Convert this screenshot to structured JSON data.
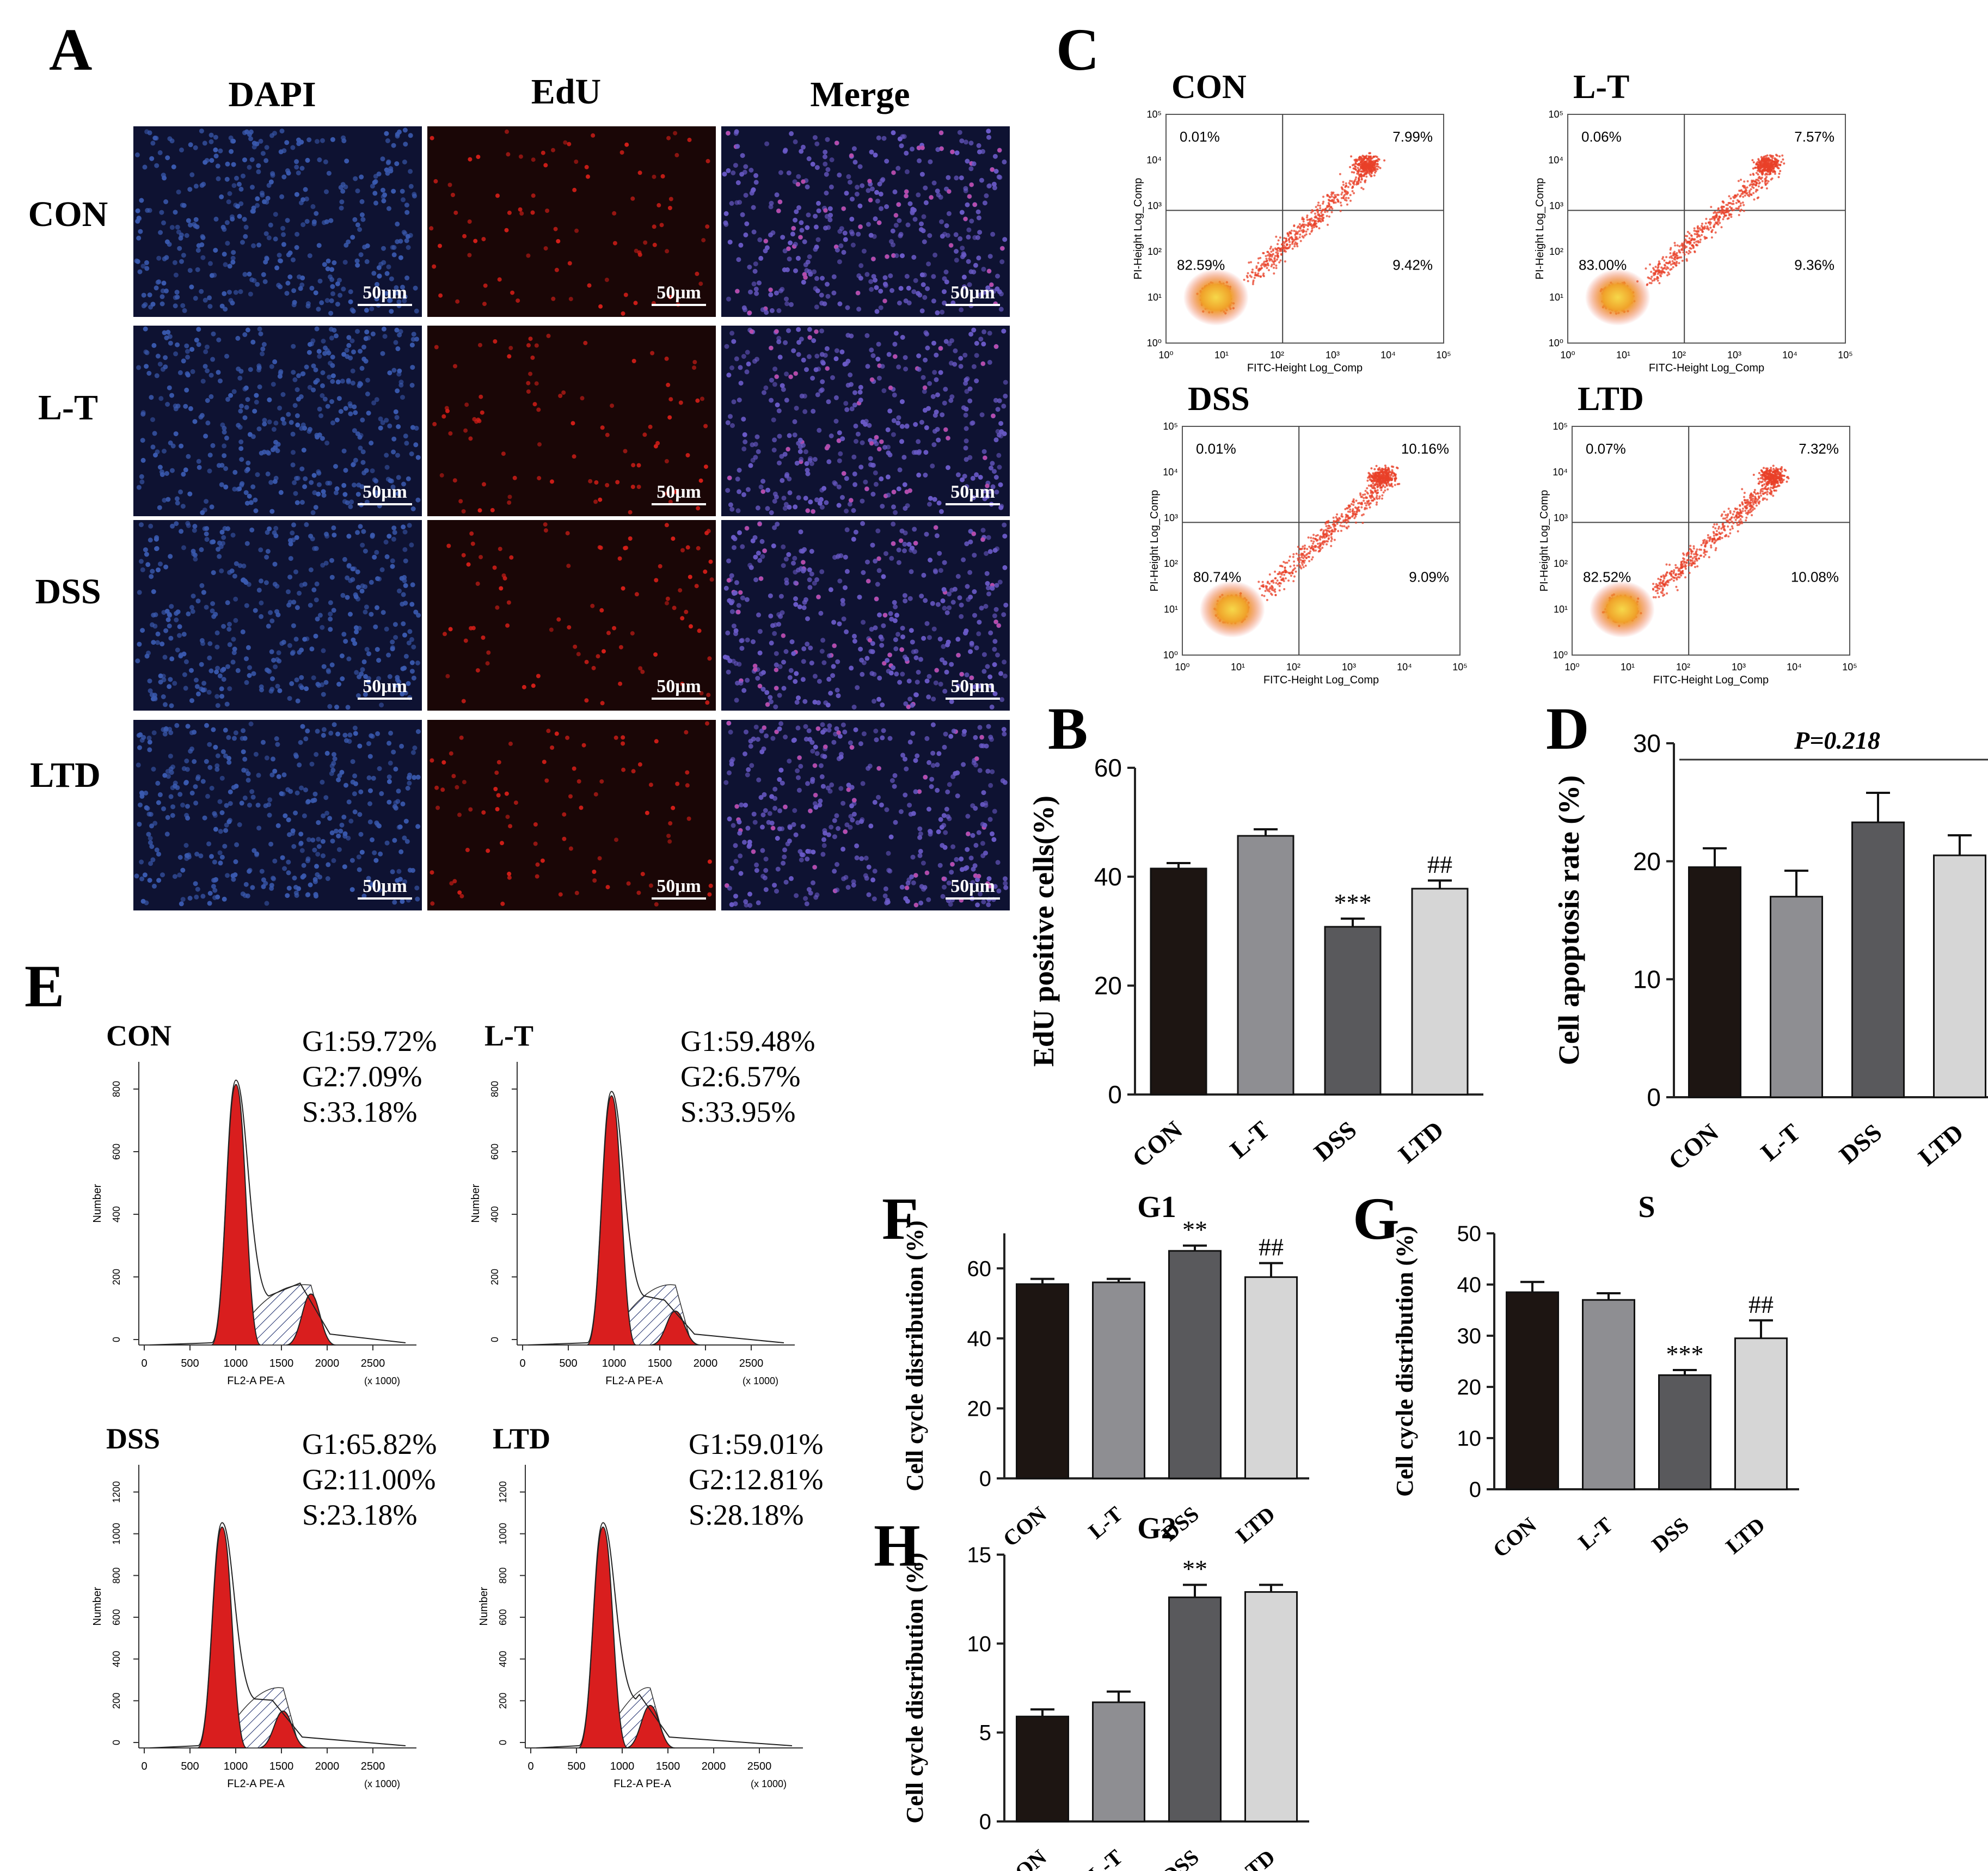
{
  "colors": {
    "micro_bg": "#0e1232",
    "dapi": "#3a5ab0",
    "edu": "#d31e18",
    "merge": "#6a5ac8",
    "bar_con": "#1d1512",
    "bar_lt": "#8e8e92",
    "bar_dss": "#59595c",
    "bar_ltd": "#d6d6d6",
    "hist_red": "#d91e1e",
    "scatter_red": "#e84028",
    "scatter_core": "#f3c229"
  },
  "panelA": {
    "letter": "A",
    "columns": [
      "DAPI",
      "EdU",
      "Merge"
    ],
    "rows": [
      "CON",
      "L-T",
      "DSS",
      "LTD"
    ],
    "scale_label": "50μm"
  },
  "panelC": {
    "letter": "C",
    "plots": [
      {
        "title": "CON",
        "ul": "0.01%",
        "ur": "7.99%",
        "ll": "82.59%",
        "lr": "9.42%"
      },
      {
        "title": "L-T",
        "ul": "0.06%",
        "ur": "7.57%",
        "ll": "83.00%",
        "lr": "9.36%"
      },
      {
        "title": "DSS",
        "ul": "0.01%",
        "ur": "10.16%",
        "ll": "80.74%",
        "lr": "9.09%"
      },
      {
        "title": "LTD",
        "ul": "0.07%",
        "ur": "7.32%",
        "ll": "82.52%",
        "lr": "10.08%"
      }
    ],
    "xlabel": "FITC-Height Log_Comp",
    "ylabel": "PI-Height Log_Comp",
    "ticks": [
      "10⁰",
      "10¹",
      "10²",
      "10³",
      "10⁴",
      "10⁵"
    ]
  },
  "panelE": {
    "letter": "E",
    "xlabel": "FL2-A PE-A",
    "xunit": "(x 1000)",
    "ylabel": "Number",
    "xticks": [
      "0",
      "500",
      "1000",
      "1500",
      "2000",
      "2500"
    ],
    "plots": [
      {
        "title": "CON",
        "g1": "G1:59.72%",
        "g2": "G2:7.09%",
        "s": "S:33.18%",
        "yticks": [
          "0",
          "200",
          "400",
          "600",
          "800"
        ]
      },
      {
        "title": "L-T",
        "g1": "G1:59.48%",
        "g2": "G2:6.57%",
        "s": "S:33.95%",
        "yticks": [
          "0",
          "200",
          "400",
          "600",
          "800"
        ]
      },
      {
        "title": "DSS",
        "g1": "G1:65.82%",
        "g2": "G2:11.00%",
        "s": "S:23.18%",
        "yticks": [
          "0",
          "200",
          "400",
          "600",
          "800",
          "1000",
          "1200"
        ]
      },
      {
        "title": "LTD",
        "g1": "G1:59.01%",
        "g2": "G2:12.81%",
        "s": "S:28.18%",
        "yticks": [
          "0",
          "200",
          "400",
          "600",
          "800",
          "1000",
          "1200"
        ]
      }
    ]
  },
  "chart_data": [
    {
      "id": "B",
      "type": "bar",
      "letter": "B",
      "title": "",
      "ylabel": "EdU positive cells(%)",
      "categories": [
        "CON",
        "L-T",
        "DSS",
        "LTD"
      ],
      "values": [
        41.5,
        47.5,
        30.8,
        37.8
      ],
      "errors": [
        1.0,
        1.2,
        1.5,
        1.5
      ],
      "ylim": [
        0,
        60
      ],
      "yticks": [
        0,
        20,
        40,
        60
      ],
      "annotations": [
        "",
        "",
        "***",
        "##"
      ]
    },
    {
      "id": "D",
      "type": "bar",
      "letter": "D",
      "title": "",
      "ylabel": "Cell apoptosis rate (%)",
      "categories": [
        "CON",
        "L-T",
        "DSS",
        "LTD"
      ],
      "values": [
        19.5,
        17.0,
        23.3,
        20.5
      ],
      "errors": [
        1.6,
        2.2,
        2.5,
        1.7
      ],
      "ylim": [
        0,
        30
      ],
      "yticks": [
        0,
        10,
        20,
        30
      ],
      "annotations": [
        "",
        "",
        "",
        ""
      ],
      "pvalue": "P=0.218"
    },
    {
      "id": "F",
      "type": "bar",
      "letter": "F",
      "title": "G1",
      "ylabel": "Cell cycle distribution (%)",
      "categories": [
        "CON",
        "L-T",
        "DSS",
        "LTD"
      ],
      "values": [
        55.5,
        56.0,
        65.0,
        57.5
      ],
      "errors": [
        1.5,
        1.0,
        1.5,
        4.0
      ],
      "ylim": [
        0,
        70
      ],
      "yticks": [
        0,
        20,
        40,
        60
      ],
      "annotations": [
        "",
        "",
        "**",
        "##"
      ]
    },
    {
      "id": "G",
      "type": "bar",
      "letter": "G",
      "title": "S",
      "ylabel": "Cell cycle distribution (%)",
      "categories": [
        "CON",
        "L-T",
        "DSS",
        "LTD"
      ],
      "values": [
        38.5,
        37.0,
        22.3,
        29.5
      ],
      "errors": [
        2.0,
        1.3,
        1.0,
        3.5
      ],
      "ylim": [
        0,
        50
      ],
      "yticks": [
        0,
        10,
        20,
        30,
        40,
        50
      ],
      "annotations": [
        "",
        "",
        "***",
        "##"
      ]
    },
    {
      "id": "H",
      "type": "bar",
      "letter": "H",
      "title": "G2",
      "ylabel": "Cell cycle distribution (%)",
      "categories": [
        "CON",
        "L-T",
        "DSS",
        "LTD"
      ],
      "values": [
        5.9,
        6.7,
        12.6,
        12.9
      ],
      "errors": [
        0.4,
        0.6,
        0.7,
        0.4
      ],
      "ylim": [
        0,
        15
      ],
      "yticks": [
        0,
        5,
        10,
        15
      ],
      "annotations": [
        "",
        "",
        "**",
        ""
      ]
    }
  ]
}
